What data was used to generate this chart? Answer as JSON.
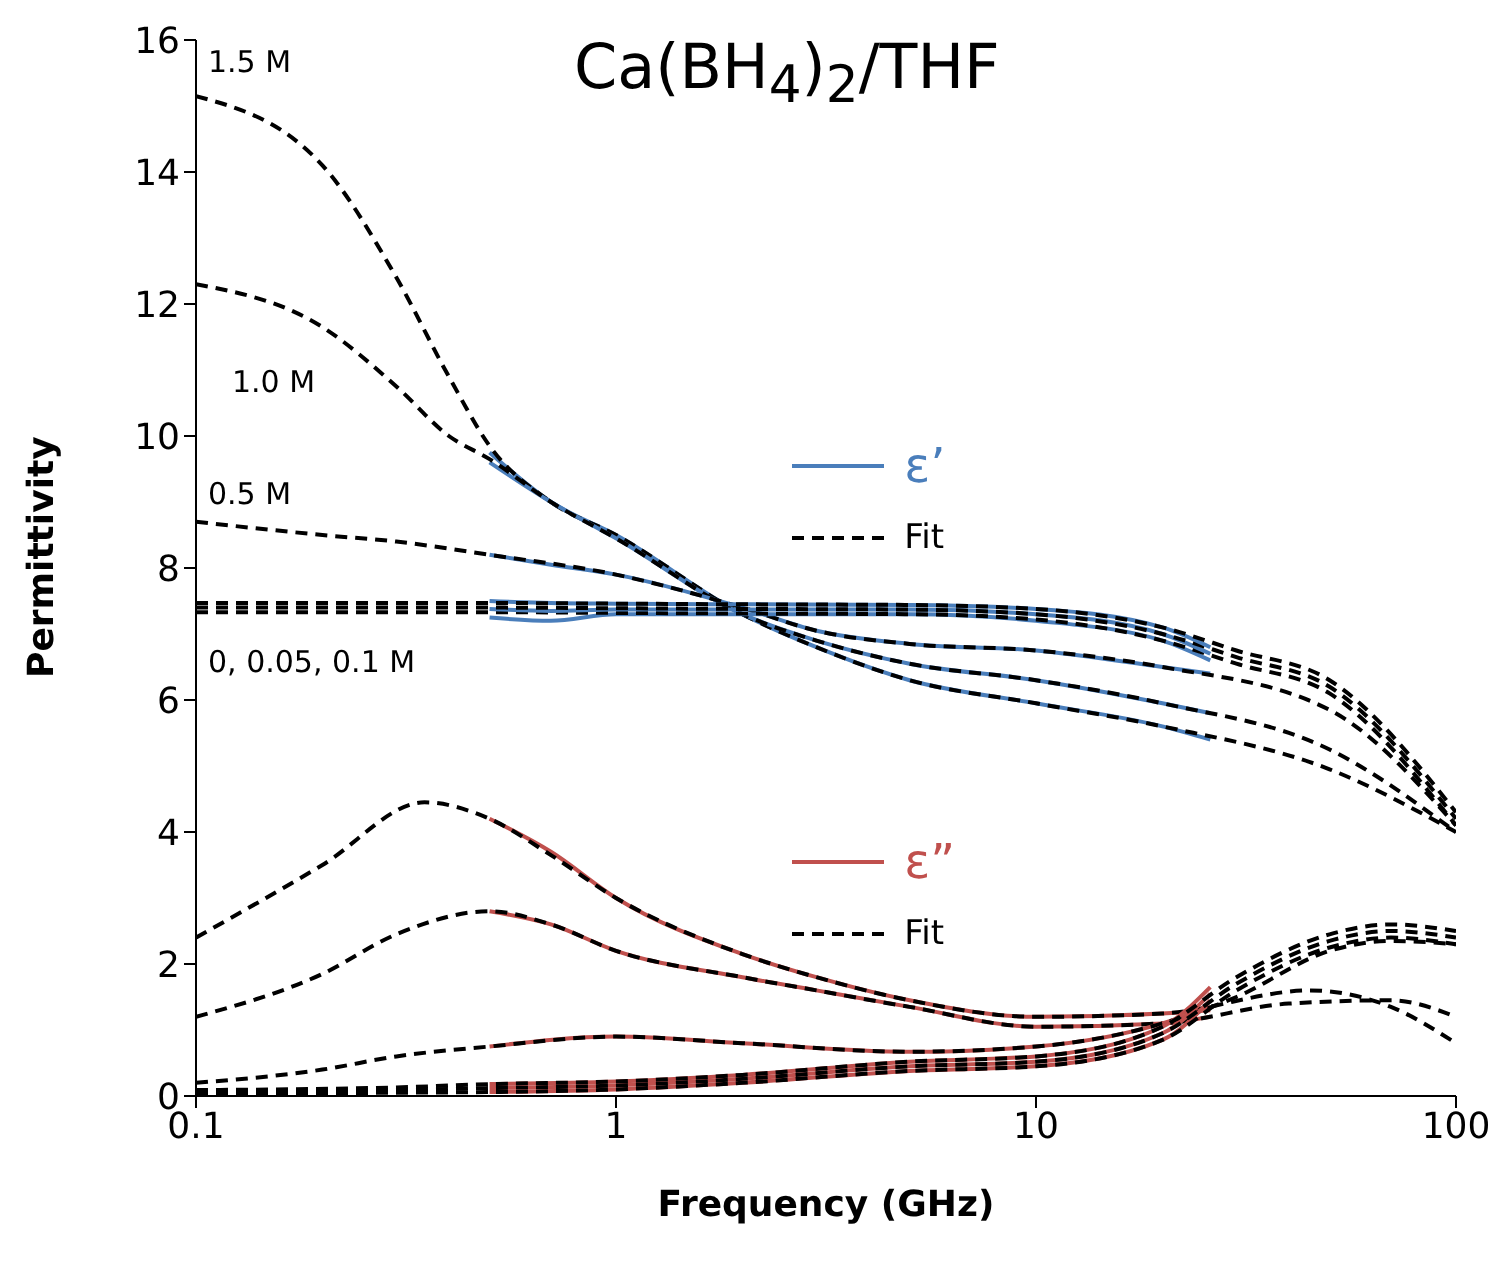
{
  "chart_data": {
    "type": "line",
    "title": "Ca(BH$_{4}$)$_{2}$/THF",
    "xlabel": "Frequency (GHz)",
    "ylabel": "Permittivity",
    "log": "x",
    "xlim": [
      0.1,
      100
    ],
    "xticks": [
      0.1,
      1,
      10,
      100
    ],
    "ylim": [
      0,
      16
    ],
    "yticks": [
      0,
      2,
      4,
      6,
      8,
      10,
      12,
      14,
      16
    ],
    "grid": false,
    "legend": "right",
    "marker": "none",
    "annotations": [
      "1.5 M",
      "1.0 M",
      "0.5 M",
      "0, 0.05, 0.1 M"
    ],
    "series": [
      {
        "name": "ε’",
        "color": "#4a7ebb",
        "line_style": "solid",
        "x": [
          0.5,
          0.7,
          1,
          2,
          3,
          5,
          10,
          20,
          26
        ],
        "values": [
          9.75,
          9.0,
          8.5,
          7.3,
          6.8,
          6.3,
          5.95,
          5.6,
          5.4
        ]
      },
      {
        "name": "Fit",
        "color": "#000000",
        "line_style": "dashed",
        "x": [
          0.1,
          0.2,
          0.3,
          0.4,
          0.5,
          0.7,
          1,
          2,
          3,
          5,
          10,
          20,
          50,
          100
        ],
        "values": [
          15.15,
          14.1,
          12.4,
          10.9,
          9.85,
          9.0,
          8.5,
          7.3,
          6.8,
          6.3,
          5.95,
          5.6,
          4.95,
          4.0
        ]
      },
      {
        "color": "#4a7ebb",
        "line_style": "solid",
        "x": [
          0.5,
          0.7,
          1,
          2,
          3,
          5,
          10,
          20,
          26
        ],
        "values": [
          9.6,
          9.0,
          8.45,
          7.3,
          6.9,
          6.55,
          6.3,
          5.95,
          5.8
        ]
      },
      {
        "color": "#000000",
        "line_style": "dashed",
        "x": [
          0.1,
          0.2,
          0.3,
          0.4,
          0.5,
          0.7,
          1,
          2,
          3,
          5,
          10,
          20,
          50,
          100
        ],
        "values": [
          12.3,
          11.65,
          10.75,
          10.0,
          9.65,
          9.0,
          8.45,
          7.3,
          6.9,
          6.55,
          6.3,
          5.95,
          5.25,
          4.0
        ]
      },
      {
        "color": "#4a7ebb",
        "line_style": "solid",
        "x": [
          0.5,
          0.7,
          1,
          2,
          3,
          5,
          10,
          20,
          26
        ],
        "values": [
          8.2,
          8.05,
          7.9,
          7.4,
          7.05,
          6.85,
          6.75,
          6.5,
          6.4
        ]
      },
      {
        "color": "#000000",
        "line_style": "dashed",
        "x": [
          0.1,
          0.2,
          0.3,
          0.5,
          1,
          2,
          3,
          5,
          10,
          20,
          50,
          100
        ],
        "values": [
          8.7,
          8.5,
          8.4,
          8.2,
          7.9,
          7.4,
          7.05,
          6.85,
          6.75,
          6.5,
          5.85,
          4.1
        ]
      },
      {
        "color": "#4a7ebb",
        "line_style": "solid",
        "x": [
          0.5,
          0.7,
          1,
          2,
          5,
          10,
          20,
          26
        ],
        "values": [
          7.25,
          7.2,
          7.3,
          7.3,
          7.3,
          7.2,
          6.9,
          6.6
        ]
      },
      {
        "color": "#000000",
        "line_style": "dashed",
        "x": [
          0.1,
          0.5,
          1,
          2,
          5,
          10,
          20,
          30,
          50,
          100
        ],
        "values": [
          7.33,
          7.33,
          7.32,
          7.31,
          7.3,
          7.22,
          6.9,
          6.55,
          6.1,
          4.1
        ]
      },
      {
        "color": "#4a7ebb",
        "line_style": "solid",
        "x": [
          0.5,
          0.7,
          1,
          2,
          5,
          10,
          20,
          26
        ],
        "values": [
          7.38,
          7.35,
          7.37,
          7.37,
          7.37,
          7.3,
          7.0,
          6.7
        ]
      },
      {
        "color": "#000000",
        "line_style": "dashed",
        "x": [
          0.1,
          0.5,
          1,
          2,
          5,
          10,
          20,
          30,
          50,
          100
        ],
        "values": [
          7.4,
          7.4,
          7.39,
          7.38,
          7.37,
          7.3,
          7.0,
          6.65,
          6.2,
          4.2
        ]
      },
      {
        "color": "#4a7ebb",
        "line_style": "solid",
        "x": [
          0.5,
          0.7,
          1,
          2,
          5,
          10,
          20,
          26
        ],
        "values": [
          7.5,
          7.47,
          7.46,
          7.45,
          7.44,
          7.38,
          7.1,
          6.8
        ]
      },
      {
        "color": "#000000",
        "line_style": "dashed",
        "x": [
          0.1,
          0.5,
          1,
          2,
          5,
          10,
          20,
          30,
          50,
          100
        ],
        "values": [
          7.47,
          7.47,
          7.46,
          7.45,
          7.44,
          7.38,
          7.1,
          6.75,
          6.3,
          4.3
        ]
      },
      {
        "name": "ε”",
        "color": "#c0504d",
        "line_style": "solid",
        "x": [
          0.5,
          0.7,
          1,
          2,
          3,
          5,
          10,
          20,
          26
        ],
        "values": [
          4.2,
          3.7,
          3.0,
          2.15,
          1.8,
          1.45,
          1.2,
          1.25,
          1.3
        ]
      },
      {
        "name": "Fit",
        "color": "#000000",
        "line_style": "dashed",
        "x": [
          0.1,
          0.2,
          0.35,
          0.5,
          0.7,
          1,
          2,
          3,
          5,
          10,
          20,
          45,
          70,
          100
        ],
        "values": [
          2.4,
          3.5,
          4.45,
          4.2,
          3.65,
          3.0,
          2.15,
          1.8,
          1.45,
          1.2,
          1.25,
          1.6,
          1.35,
          0.8
        ]
      },
      {
        "color": "#c0504d",
        "line_style": "solid",
        "x": [
          0.5,
          0.7,
          1,
          2,
          3,
          5,
          10,
          20,
          26
        ],
        "values": [
          2.8,
          2.6,
          2.2,
          1.8,
          1.6,
          1.35,
          1.05,
          1.1,
          1.2
        ]
      },
      {
        "color": "#000000",
        "line_style": "dashed",
        "x": [
          0.1,
          0.2,
          0.3,
          0.5,
          0.7,
          1,
          2,
          3,
          5,
          10,
          20,
          40,
          70,
          100
        ],
        "values": [
          1.2,
          1.85,
          2.45,
          2.8,
          2.6,
          2.2,
          1.8,
          1.6,
          1.35,
          1.05,
          1.1,
          1.4,
          1.45,
          1.2
        ]
      },
      {
        "color": "#c0504d",
        "line_style": "solid",
        "x": [
          0.5,
          1,
          2,
          5,
          10,
          20,
          26
        ],
        "values": [
          0.75,
          0.9,
          0.8,
          0.67,
          0.75,
          1.1,
          1.35
        ]
      },
      {
        "color": "#000000",
        "line_style": "dashed",
        "x": [
          0.1,
          0.2,
          0.3,
          0.5,
          1,
          2,
          5,
          10,
          20,
          30,
          50,
          70,
          100
        ],
        "values": [
          0.2,
          0.4,
          0.6,
          0.75,
          0.9,
          0.8,
          0.67,
          0.75,
          1.1,
          1.5,
          2.2,
          2.35,
          2.3
        ]
      },
      {
        "color": "#c0504d",
        "line_style": "solid",
        "x": [
          0.5,
          1,
          2,
          5,
          10,
          20,
          26
        ],
        "values": [
          0.06,
          0.1,
          0.2,
          0.38,
          0.45,
          0.85,
          1.45
        ]
      },
      {
        "color": "#000000",
        "line_style": "dashed",
        "x": [
          0.1,
          0.3,
          0.5,
          1,
          2,
          5,
          10,
          20,
          30,
          50,
          70,
          100
        ],
        "values": [
          0.03,
          0.05,
          0.06,
          0.1,
          0.2,
          0.38,
          0.45,
          0.85,
          1.6,
          2.25,
          2.4,
          2.3
        ]
      },
      {
        "color": "#c0504d",
        "line_style": "solid",
        "x": [
          0.5,
          1,
          2,
          5,
          10,
          20,
          26
        ],
        "values": [
          0.12,
          0.16,
          0.26,
          0.45,
          0.52,
          0.95,
          1.55
        ]
      },
      {
        "color": "#000000",
        "line_style": "dashed",
        "x": [
          0.1,
          0.3,
          0.5,
          1,
          2,
          5,
          10,
          20,
          30,
          50,
          70,
          100
        ],
        "values": [
          0.06,
          0.09,
          0.12,
          0.16,
          0.26,
          0.45,
          0.52,
          0.95,
          1.7,
          2.35,
          2.5,
          2.4
        ]
      },
      {
        "color": "#c0504d",
        "line_style": "solid",
        "x": [
          0.5,
          1,
          2,
          5,
          10,
          20,
          26
        ],
        "values": [
          0.18,
          0.22,
          0.32,
          0.52,
          0.6,
          1.05,
          1.65
        ]
      },
      {
        "color": "#000000",
        "line_style": "dashed",
        "x": [
          0.1,
          0.3,
          0.5,
          1,
          2,
          5,
          10,
          20,
          30,
          50,
          70,
          100
        ],
        "values": [
          0.09,
          0.13,
          0.18,
          0.22,
          0.32,
          0.52,
          0.6,
          1.05,
          1.8,
          2.45,
          2.6,
          2.5
        ]
      }
    ]
  }
}
